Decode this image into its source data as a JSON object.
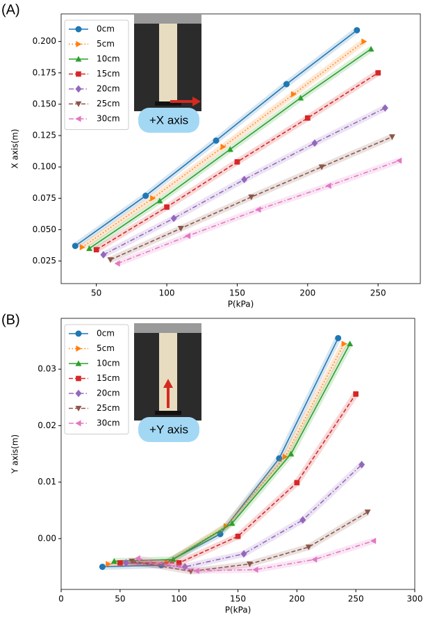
{
  "chart_data": [
    {
      "type": "line",
      "panel_label": "(A)",
      "annotation": "+X axis",
      "xlabel": "P(kPa)",
      "ylabel": "X axis(m)",
      "xlim": [
        25,
        280
      ],
      "ylim": [
        0.007,
        0.222
      ],
      "xticks": [
        50,
        100,
        150,
        200,
        250
      ],
      "yticks": [
        {
          "value": 0.025,
          "label": "0.025"
        },
        {
          "value": 0.05,
          "label": "0.050"
        },
        {
          "value": 0.075,
          "label": "0.075"
        },
        {
          "value": 0.1,
          "label": "0.100"
        },
        {
          "value": 0.125,
          "label": "0.125"
        },
        {
          "value": 0.15,
          "label": "0.150"
        },
        {
          "value": 0.175,
          "label": "0.175"
        },
        {
          "value": 0.2,
          "label": "0.200"
        }
      ],
      "legend": "upper left",
      "series": [
        {
          "name": "0cm",
          "color": "#1f77b4",
          "marker": "circle",
          "linestyle": "solid",
          "x": [
            35,
            85,
            135,
            185,
            235
          ],
          "values": [
            0.037,
            0.077,
            0.121,
            0.166,
            0.209
          ]
        },
        {
          "name": "5cm",
          "color": "#ff7f0e",
          "marker": "triangle-right",
          "linestyle": "dotted",
          "x": [
            40,
            90,
            140,
            190,
            240
          ],
          "values": [
            0.036,
            0.075,
            0.116,
            0.158,
            0.2
          ]
        },
        {
          "name": "10cm",
          "color": "#2ca02c",
          "marker": "triangle-up",
          "linestyle": "solid",
          "x": [
            45,
            95,
            145,
            195,
            245
          ],
          "values": [
            0.035,
            0.073,
            0.114,
            0.155,
            0.194
          ]
        },
        {
          "name": "15cm",
          "color": "#d62728",
          "marker": "square",
          "linestyle": "dashed",
          "x": [
            50,
            100,
            150,
            200,
            250
          ],
          "values": [
            0.034,
            0.068,
            0.104,
            0.139,
            0.175
          ]
        },
        {
          "name": "20cm",
          "color": "#9467bd",
          "marker": "diamond",
          "linestyle": "dashdot",
          "x": [
            55,
            105,
            155,
            205,
            255
          ],
          "values": [
            0.03,
            0.059,
            0.09,
            0.119,
            0.147
          ]
        },
        {
          "name": "25cm",
          "color": "#8c564b",
          "marker": "triangle-down",
          "linestyle": "dashed",
          "x": [
            60,
            110,
            160,
            210,
            260
          ],
          "values": [
            0.026,
            0.051,
            0.076,
            0.1,
            0.124
          ]
        },
        {
          "name": "30cm",
          "color": "#e377c2",
          "marker": "triangle-left",
          "linestyle": "dashdot",
          "x": [
            65,
            115,
            165,
            215,
            265
          ],
          "values": [
            0.023,
            0.045,
            0.066,
            0.085,
            0.105
          ]
        }
      ]
    },
    {
      "type": "line",
      "panel_label": "(B)",
      "annotation": "+Y axis",
      "xlabel": "P(kPa)",
      "ylabel": "Y axis(m)",
      "xlim": [
        0,
        300
      ],
      "ylim": [
        -0.009,
        0.039
      ],
      "xticks": [
        0,
        50,
        100,
        150,
        200,
        250,
        300
      ],
      "yticks": [
        {
          "value": 0,
          "label": "0.00"
        },
        {
          "value": 0.01,
          "label": "0.01"
        },
        {
          "value": 0.02,
          "label": "0.02"
        },
        {
          "value": 0.03,
          "label": "0.03"
        }
      ],
      "legend": "upper left",
      "series": [
        {
          "name": "0cm",
          "color": "#1f77b4",
          "marker": "circle",
          "linestyle": "solid",
          "x": [
            35,
            85,
            135,
            185,
            235
          ],
          "values": [
            -0.005,
            -0.0047,
            0.0008,
            0.0142,
            0.0355
          ]
        },
        {
          "name": "5cm",
          "color": "#ff7f0e",
          "marker": "triangle-right",
          "linestyle": "dotted",
          "x": [
            40,
            90,
            140,
            190,
            240
          ],
          "values": [
            -0.0045,
            -0.0042,
            0.0022,
            0.0145,
            0.0345
          ]
        },
        {
          "name": "10cm",
          "color": "#2ca02c",
          "marker": "triangle-up",
          "linestyle": "solid",
          "x": [
            45,
            95,
            145,
            195,
            245
          ],
          "values": [
            -0.004,
            -0.0037,
            0.0027,
            0.015,
            0.0345
          ]
        },
        {
          "name": "15cm",
          "color": "#d62728",
          "marker": "square",
          "linestyle": "dashed",
          "x": [
            50,
            100,
            150,
            200,
            250
          ],
          "values": [
            -0.0043,
            -0.0043,
            0.0004,
            0.0099,
            0.0256
          ]
        },
        {
          "name": "20cm",
          "color": "#9467bd",
          "marker": "diamond",
          "linestyle": "dashdot",
          "x": [
            55,
            105,
            155,
            205,
            255
          ],
          "values": [
            -0.0043,
            -0.005,
            -0.0027,
            0.0033,
            0.0131
          ]
        },
        {
          "name": "25cm",
          "color": "#8c564b",
          "marker": "triangle-down",
          "linestyle": "dashed",
          "x": [
            60,
            110,
            160,
            210,
            260
          ],
          "values": [
            -0.004,
            -0.0058,
            -0.0045,
            -0.0015,
            0.0047
          ]
        },
        {
          "name": "30cm",
          "color": "#e377c2",
          "marker": "triangle-left",
          "linestyle": "dashdot",
          "x": [
            65,
            115,
            165,
            215,
            265
          ],
          "values": [
            -0.0035,
            -0.0057,
            -0.0055,
            -0.0037,
            -0.0004
          ]
        }
      ]
    }
  ]
}
